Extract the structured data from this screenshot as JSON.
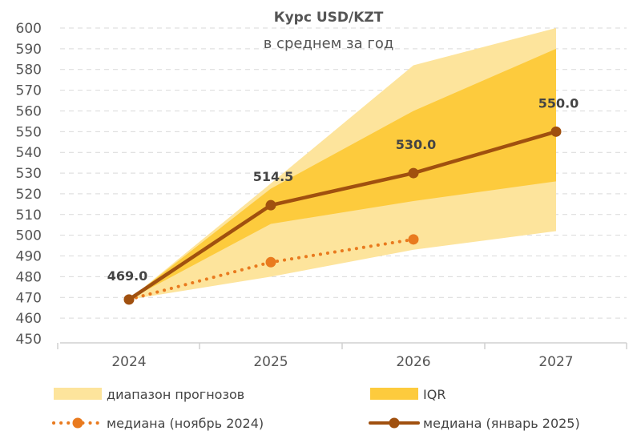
{
  "chart_data": {
    "type": "line",
    "title": "Курс USD/KZT",
    "subtitle": "в среднем за год",
    "xlabel": "",
    "ylabel": "",
    "ylim": [
      450,
      600
    ],
    "yticks": [
      450,
      460,
      470,
      480,
      490,
      500,
      510,
      520,
      530,
      540,
      550,
      560,
      570,
      580,
      590,
      600
    ],
    "categories": [
      "2024",
      "2025",
      "2026",
      "2027"
    ],
    "grid": true,
    "legend_placement": "bottom",
    "bands": [
      {
        "name": "диапазон прогнозов",
        "color": "#FDE49C",
        "low": [
          469,
          480,
          493,
          502
        ],
        "high": [
          469,
          525,
          582,
          600
        ]
      },
      {
        "name": "IQR",
        "color": "#FDCB3D",
        "low": [
          469,
          505.5,
          516.5,
          526
        ],
        "high": [
          469,
          522.5,
          560,
          590
        ]
      }
    ],
    "series": [
      {
        "name": "медиана (ноябрь 2024)",
        "color": "#E97A1E",
        "style": "dotted",
        "values": [
          469,
          487,
          498,
          null
        ]
      },
      {
        "name": "медиана (январь 2025)",
        "color": "#A0500F",
        "style": "solid",
        "values": [
          469.0,
          514.5,
          530.0,
          550.0
        ],
        "data_labels": [
          "469.0",
          "514.5",
          "530.0",
          "550.0"
        ]
      }
    ]
  }
}
